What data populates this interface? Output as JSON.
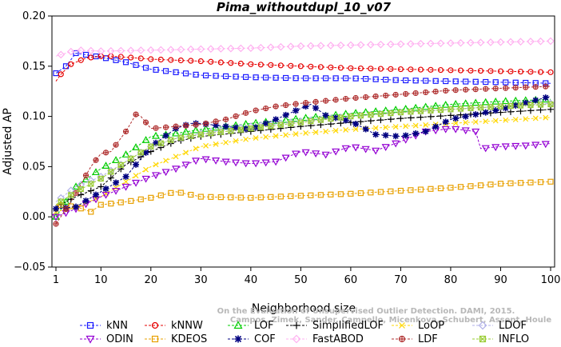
{
  "chart_data": {
    "type": "line",
    "title": "Pima_withoutdupl_10_v07",
    "xlabel": "Neighborhood size",
    "ylabel": "Adjusted AP",
    "xlim": [
      1,
      100
    ],
    "ylim": [
      -0.05,
      0.2
    ],
    "xticks": [
      "1",
      "10",
      "20",
      "30",
      "40",
      "50",
      "60",
      "70",
      "80",
      "90",
      "100"
    ],
    "yticks": [
      "−0.05",
      "0.00",
      "0.05",
      "0.10",
      "0.15",
      "0.20"
    ],
    "grid": false,
    "legend_position": "bottom",
    "watermark": [
      "Campos, Zimek, Sander, Campello, Micenkova, Schubert, Assent, Houle",
      "On the Evaluation of Unsupervised Outlier Detection. DAMI, 2015."
    ],
    "series": [
      {
        "name": "kNN",
        "color": "#1a1aff",
        "marker": "square",
        "x": [
          1,
          3,
          5,
          10,
          12,
          15,
          20,
          25,
          30,
          40,
          50,
          60,
          70,
          80,
          90,
          100
        ],
        "values": [
          0.143,
          0.15,
          0.163,
          0.159,
          0.157,
          0.154,
          0.147,
          0.144,
          0.141,
          0.139,
          0.138,
          0.138,
          0.136,
          0.135,
          0.134,
          0.133
        ]
      },
      {
        "name": "kNNW",
        "color": "#e60000",
        "marker": "circle",
        "x": [
          1,
          2,
          4,
          7,
          10,
          12,
          15,
          20,
          30,
          40,
          50,
          60,
          70,
          80,
          90,
          100
        ],
        "values": [
          0.135,
          0.142,
          0.152,
          0.158,
          0.16,
          0.16,
          0.159,
          0.157,
          0.155,
          0.152,
          0.15,
          0.148,
          0.147,
          0.146,
          0.145,
          0.144
        ]
      },
      {
        "name": "LOF",
        "color": "#00cc00",
        "marker": "triangle-up",
        "x": [
          1,
          5,
          10,
          15,
          20,
          25,
          30,
          40,
          50,
          60,
          70,
          80,
          90,
          100
        ],
        "values": [
          0.0,
          0.03,
          0.048,
          0.062,
          0.08,
          0.083,
          0.087,
          0.093,
          0.098,
          0.103,
          0.107,
          0.112,
          0.115,
          0.117
        ]
      },
      {
        "name": "SimplifiedLOF",
        "color": "#000000",
        "marker": "plus",
        "x": [
          1,
          5,
          10,
          15,
          20,
          25,
          30,
          40,
          50,
          60,
          70,
          80,
          90,
          100
        ],
        "values": [
          0.01,
          0.02,
          0.03,
          0.052,
          0.065,
          0.075,
          0.08,
          0.085,
          0.09,
          0.094,
          0.098,
          0.101,
          0.104,
          0.107
        ]
      },
      {
        "name": "LoOP",
        "color": "#ffd700",
        "marker": "x",
        "x": [
          1,
          5,
          10,
          15,
          20,
          25,
          30,
          40,
          50,
          60,
          70,
          80,
          90,
          100
        ],
        "values": [
          0.005,
          0.01,
          0.02,
          0.035,
          0.05,
          0.06,
          0.07,
          0.078,
          0.083,
          0.087,
          0.09,
          0.093,
          0.096,
          0.099
        ]
      },
      {
        "name": "LDOF",
        "color": "#b0b0e8",
        "marker": "diamond",
        "x": [
          1,
          5,
          10,
          15,
          20,
          25,
          30,
          40,
          50,
          60,
          70,
          80,
          90,
          100
        ],
        "values": [
          0.015,
          0.03,
          0.04,
          0.055,
          0.07,
          0.078,
          0.083,
          0.09,
          0.095,
          0.1,
          0.104,
          0.107,
          0.11,
          0.113
        ]
      },
      {
        "name": "ODIN",
        "color": "#9400d3",
        "marker": "triangle-down",
        "x": [
          1,
          5,
          10,
          15,
          20,
          25,
          30,
          35,
          40,
          45,
          50,
          55,
          60,
          65,
          70,
          75,
          80,
          85,
          86,
          90,
          95,
          100
        ],
        "values": [
          0.0,
          0.008,
          0.02,
          0.03,
          0.04,
          0.048,
          0.058,
          0.055,
          0.053,
          0.055,
          0.065,
          0.062,
          0.07,
          0.066,
          0.075,
          0.085,
          0.088,
          0.085,
          0.068,
          0.07,
          0.071,
          0.073
        ]
      },
      {
        "name": "KDEOS",
        "color": "#e8a000",
        "marker": "square",
        "x": [
          1,
          5,
          8,
          10,
          15,
          20,
          25,
          30,
          40,
          50,
          60,
          70,
          80,
          90,
          100
        ],
        "values": [
          0.012,
          0.01,
          0.005,
          0.012,
          0.015,
          0.019,
          0.025,
          0.02,
          0.019,
          0.021,
          0.023,
          0.026,
          0.029,
          0.033,
          0.035
        ]
      },
      {
        "name": "COF",
        "color": "#000080",
        "marker": "star",
        "x": [
          1,
          5,
          10,
          15,
          20,
          25,
          28,
          30,
          35,
          40,
          45,
          50,
          52,
          55,
          60,
          62,
          65,
          70,
          75,
          80,
          90,
          100
        ],
        "values": [
          0.008,
          0.01,
          0.025,
          0.04,
          0.07,
          0.088,
          0.093,
          0.093,
          0.09,
          0.087,
          0.097,
          0.108,
          0.112,
          0.101,
          0.095,
          0.09,
          0.082,
          0.08,
          0.085,
          0.097,
          0.107,
          0.12
        ]
      },
      {
        "name": "FastABOD",
        "color": "#ffb0f0",
        "marker": "diamond",
        "x": [
          1,
          3,
          5,
          10,
          20,
          30,
          40,
          50,
          60,
          70,
          80,
          90,
          100
        ],
        "values": [
          0.16,
          0.163,
          0.166,
          0.165,
          0.166,
          0.167,
          0.168,
          0.17,
          0.171,
          0.172,
          0.173,
          0.174,
          0.175
        ]
      },
      {
        "name": "LDF",
        "color": "#b03030",
        "marker": "circle-plus",
        "x": [
          1,
          4,
          8,
          10,
          12,
          15,
          17,
          18,
          20,
          25,
          30,
          35,
          40,
          45,
          50,
          60,
          70,
          80,
          90,
          100
        ],
        "values": [
          -0.007,
          0.015,
          0.05,
          0.063,
          0.065,
          0.085,
          0.102,
          0.1,
          0.088,
          0.09,
          0.092,
          0.097,
          0.105,
          0.11,
          0.113,
          0.118,
          0.122,
          0.126,
          0.128,
          0.13
        ]
      },
      {
        "name": "INFLO",
        "color": "#99cc33",
        "marker": "square-x",
        "x": [
          1,
          5,
          10,
          15,
          20,
          25,
          30,
          40,
          50,
          60,
          70,
          80,
          90,
          100
        ],
        "values": [
          0.012,
          0.025,
          0.038,
          0.055,
          0.07,
          0.078,
          0.082,
          0.088,
          0.094,
          0.1,
          0.104,
          0.107,
          0.11,
          0.112
        ]
      }
    ]
  }
}
